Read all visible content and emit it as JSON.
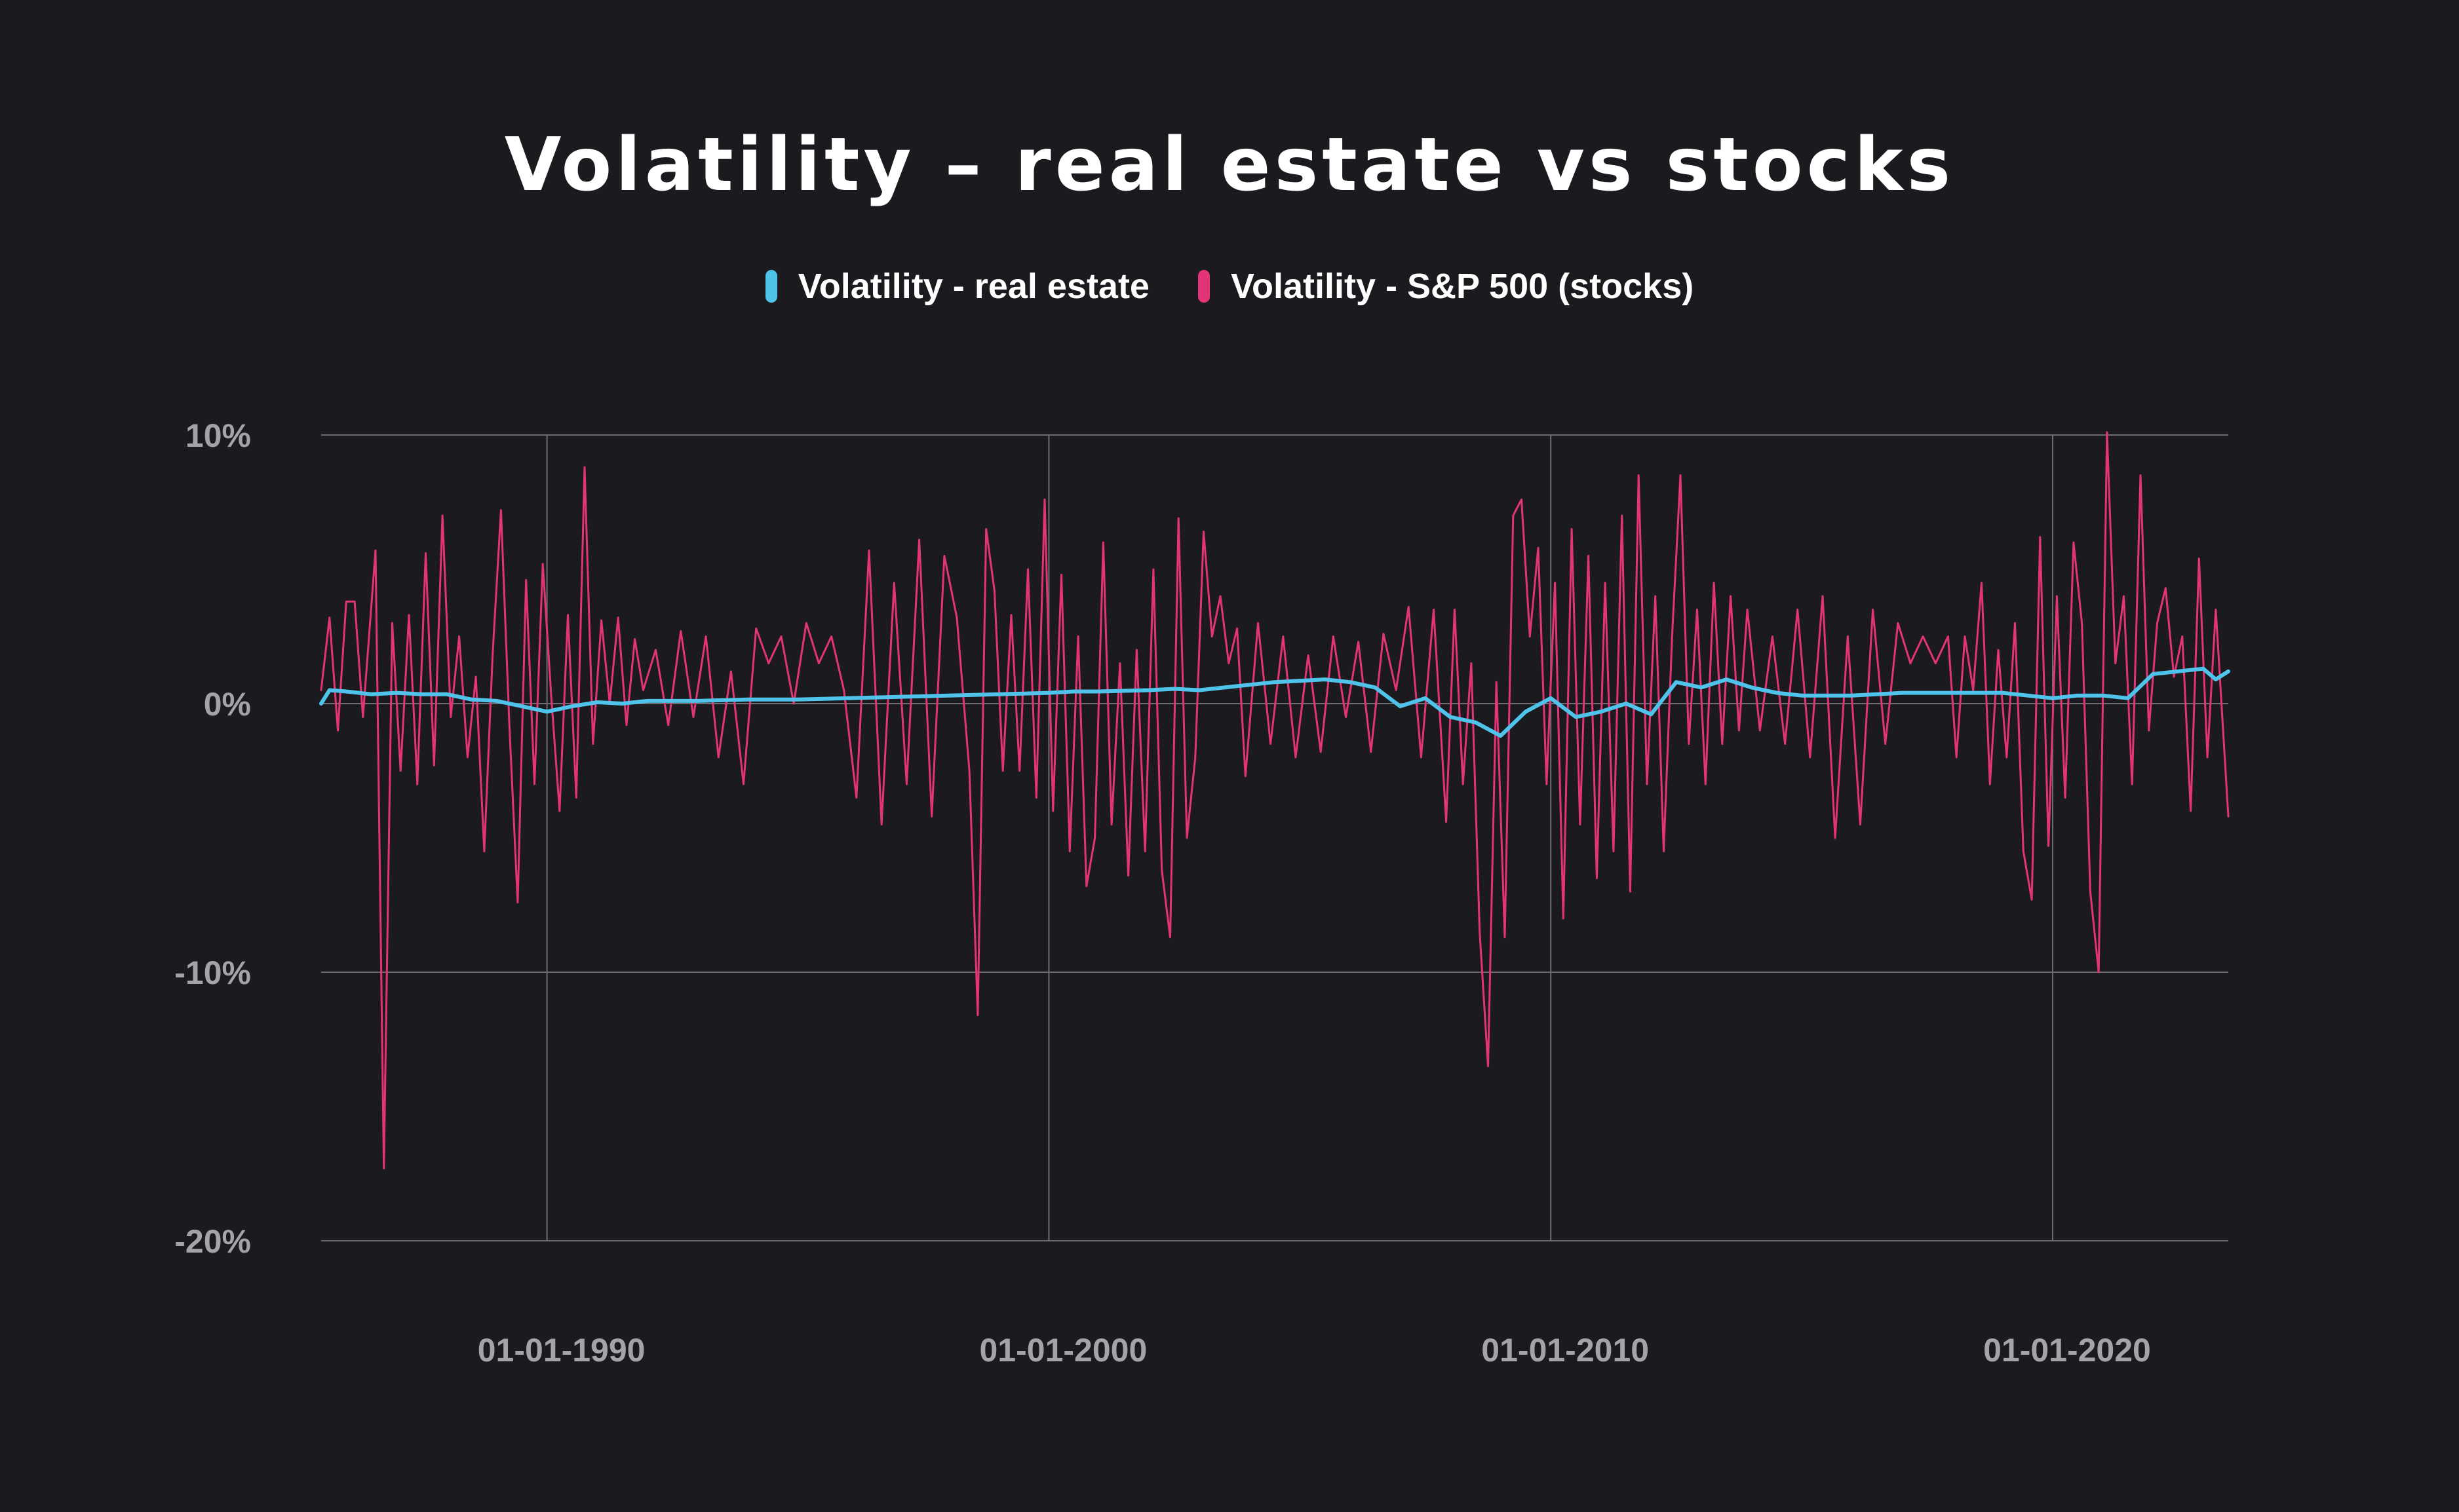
{
  "chart_data": {
    "type": "line",
    "title": "Volatility – real estate vs stocks",
    "xlabel": "",
    "ylabel": "",
    "x_range": [
      "1985-07-01",
      "2023-07-01"
    ],
    "xlim_years": [
      1985.5,
      2023.5
    ],
    "ylim": [
      -20,
      10
    ],
    "y_ticks": [
      10,
      0,
      -10,
      -20
    ],
    "y_tick_labels": [
      "10%",
      "0%",
      "-10%",
      "-20%"
    ],
    "x_ticks": [
      1990,
      2000,
      2010,
      2020
    ],
    "x_tick_labels": [
      "01-01-1990",
      "01-01-2000",
      "01-01-2010",
      "01-01-2020"
    ],
    "grid": true,
    "legend_position": "top-center",
    "colors": {
      "background": "#1b1b1f",
      "real_estate": "#4fc3ea",
      "stocks": "#e23476",
      "grid": "#6c6c72",
      "tick_text": "#a3a3aa"
    },
    "series": [
      {
        "name": "Volatility - real estate",
        "color": "#4fc3ea",
        "points": [
          [
            "1985-07",
            0.0
          ],
          [
            "1985-09",
            0.5
          ],
          [
            "1986-01",
            0.45
          ],
          [
            "1986-07",
            0.35
          ],
          [
            "1987-01",
            0.4
          ],
          [
            "1987-07",
            0.35
          ],
          [
            "1988-01",
            0.35
          ],
          [
            "1988-07",
            0.15
          ],
          [
            "1989-01",
            0.1
          ],
          [
            "1989-07",
            -0.1
          ],
          [
            "1990-01",
            -0.3
          ],
          [
            "1990-07",
            -0.1
          ],
          [
            "1991-01",
            0.05
          ],
          [
            "1991-07",
            0.0
          ],
          [
            "1992-01",
            0.1
          ],
          [
            "1993-01",
            0.1
          ],
          [
            "1994-01",
            0.15
          ],
          [
            "1995-01",
            0.15
          ],
          [
            "1996-01",
            0.2
          ],
          [
            "1997-01",
            0.25
          ],
          [
            "1998-01",
            0.3
          ],
          [
            "1999-01",
            0.35
          ],
          [
            "2000-01",
            0.4
          ],
          [
            "2000-07",
            0.45
          ],
          [
            "2001-01",
            0.45
          ],
          [
            "2002-01",
            0.5
          ],
          [
            "2002-07",
            0.55
          ],
          [
            "2003-01",
            0.5
          ],
          [
            "2003-07",
            0.6
          ],
          [
            "2004-01",
            0.7
          ],
          [
            "2004-07",
            0.8
          ],
          [
            "2005-01",
            0.85
          ],
          [
            "2005-07",
            0.9
          ],
          [
            "2006-01",
            0.8
          ],
          [
            "2006-07",
            0.6
          ],
          [
            "2007-01",
            -0.1
          ],
          [
            "2007-07",
            0.2
          ],
          [
            "2008-01",
            -0.5
          ],
          [
            "2008-07",
            -0.7
          ],
          [
            "2009-01",
            -1.2
          ],
          [
            "2009-07",
            -0.3
          ],
          [
            "2010-01",
            0.2
          ],
          [
            "2010-07",
            -0.5
          ],
          [
            "2011-01",
            -0.3
          ],
          [
            "2011-07",
            0.0
          ],
          [
            "2012-01",
            -0.4
          ],
          [
            "2012-07",
            0.8
          ],
          [
            "2013-01",
            0.6
          ],
          [
            "2013-07",
            0.9
          ],
          [
            "2014-01",
            0.6
          ],
          [
            "2014-07",
            0.4
          ],
          [
            "2015-01",
            0.3
          ],
          [
            "2016-01",
            0.3
          ],
          [
            "2017-01",
            0.4
          ],
          [
            "2018-01",
            0.4
          ],
          [
            "2019-01",
            0.4
          ],
          [
            "2019-07",
            0.3
          ],
          [
            "2020-01",
            0.2
          ],
          [
            "2020-07",
            0.3
          ],
          [
            "2021-01",
            0.3
          ],
          [
            "2021-07",
            0.2
          ],
          [
            "2022-01",
            1.1
          ],
          [
            "2022-07",
            1.2
          ],
          [
            "2023-01",
            1.3
          ],
          [
            "2023-04",
            0.9
          ],
          [
            "2023-07",
            1.2
          ]
        ]
      },
      {
        "name": "Volatility - S&P 500 (stocks)",
        "color": "#e23476",
        "points": [
          [
            "1985-07",
            0.5
          ],
          [
            "1985-09",
            3.2
          ],
          [
            "1985-11",
            -1.0
          ],
          [
            "1986-01",
            3.8
          ],
          [
            "1986-03",
            3.8
          ],
          [
            "1986-05",
            -0.5
          ],
          [
            "1986-08",
            5.7
          ],
          [
            "1986-10",
            -17.3
          ],
          [
            "1986-12",
            3.0
          ],
          [
            "1987-02",
            -2.5
          ],
          [
            "1987-04",
            3.3
          ],
          [
            "1987-06",
            -3.0
          ],
          [
            "1987-08",
            5.6
          ],
          [
            "1987-10",
            -2.3
          ],
          [
            "1987-12",
            7.0
          ],
          [
            "1988-02",
            -0.5
          ],
          [
            "1988-04",
            2.5
          ],
          [
            "1988-06",
            -2.0
          ],
          [
            "1988-08",
            1.0
          ],
          [
            "1988-10",
            -5.5
          ],
          [
            "1988-12",
            1.8
          ],
          [
            "1989-02",
            7.2
          ],
          [
            "1989-04",
            -0.8
          ],
          [
            "1989-06",
            -7.4
          ],
          [
            "1989-08",
            4.6
          ],
          [
            "1989-10",
            -3.0
          ],
          [
            "1989-12",
            5.2
          ],
          [
            "1990-02",
            0.3
          ],
          [
            "1990-04",
            -4.0
          ],
          [
            "1990-06",
            3.3
          ],
          [
            "1990-08",
            -3.5
          ],
          [
            "1990-10",
            8.8
          ],
          [
            "1990-12",
            -1.5
          ],
          [
            "1991-02",
            3.1
          ],
          [
            "1991-04",
            0.0
          ],
          [
            "1991-06",
            3.2
          ],
          [
            "1991-08",
            -0.8
          ],
          [
            "1991-10",
            2.4
          ],
          [
            "1991-12",
            0.5
          ],
          [
            "1992-03",
            2.0
          ],
          [
            "1992-06",
            -0.8
          ],
          [
            "1992-09",
            2.7
          ],
          [
            "1992-12",
            -0.5
          ],
          [
            "1993-03",
            2.5
          ],
          [
            "1993-06",
            -2.0
          ],
          [
            "1993-09",
            1.2
          ],
          [
            "1993-12",
            -3.0
          ],
          [
            "1994-03",
            2.8
          ],
          [
            "1994-06",
            1.5
          ],
          [
            "1994-09",
            2.5
          ],
          [
            "1994-12",
            0.0
          ],
          [
            "1995-03",
            3.0
          ],
          [
            "1995-06",
            1.5
          ],
          [
            "1995-09",
            2.5
          ],
          [
            "1995-12",
            0.5
          ],
          [
            "1996-03",
            -3.5
          ],
          [
            "1996-06",
            5.7
          ],
          [
            "1996-09",
            -4.5
          ],
          [
            "1996-12",
            4.5
          ],
          [
            "1997-03",
            -3.0
          ],
          [
            "1997-06",
            6.1
          ],
          [
            "1997-09",
            -4.2
          ],
          [
            "1997-12",
            5.5
          ],
          [
            "1998-03",
            3.2
          ],
          [
            "1998-06",
            -2.5
          ],
          [
            "1998-08",
            -11.6
          ],
          [
            "1998-10",
            6.5
          ],
          [
            "1998-12",
            4.2
          ],
          [
            "1999-02",
            -2.5
          ],
          [
            "1999-04",
            3.3
          ],
          [
            "1999-06",
            -2.5
          ],
          [
            "1999-08",
            5.0
          ],
          [
            "1999-10",
            -3.5
          ],
          [
            "1999-12",
            7.6
          ],
          [
            "2000-02",
            -4.0
          ],
          [
            "2000-04",
            4.8
          ],
          [
            "2000-06",
            -5.5
          ],
          [
            "2000-08",
            2.5
          ],
          [
            "2000-10",
            -6.8
          ],
          [
            "2000-12",
            -5.0
          ],
          [
            "2001-02",
            6.0
          ],
          [
            "2001-04",
            -4.5
          ],
          [
            "2001-06",
            1.5
          ],
          [
            "2001-08",
            -6.4
          ],
          [
            "2001-10",
            2.0
          ],
          [
            "2001-12",
            -5.5
          ],
          [
            "2002-02",
            5.0
          ],
          [
            "2002-04",
            -6.2
          ],
          [
            "2002-06",
            -8.7
          ],
          [
            "2002-08",
            6.9
          ],
          [
            "2002-10",
            -5.0
          ],
          [
            "2002-12",
            -2.0
          ],
          [
            "2003-02",
            6.4
          ],
          [
            "2003-04",
            2.5
          ],
          [
            "2003-06",
            4.0
          ],
          [
            "2003-08",
            1.5
          ],
          [
            "2003-10",
            2.8
          ],
          [
            "2003-12",
            -2.7
          ],
          [
            "2004-03",
            3.0
          ],
          [
            "2004-06",
            -1.5
          ],
          [
            "2004-09",
            2.5
          ],
          [
            "2004-12",
            -2.0
          ],
          [
            "2005-03",
            1.8
          ],
          [
            "2005-06",
            -1.8
          ],
          [
            "2005-09",
            2.5
          ],
          [
            "2005-12",
            -0.5
          ],
          [
            "2006-03",
            2.3
          ],
          [
            "2006-06",
            -1.8
          ],
          [
            "2006-09",
            2.6
          ],
          [
            "2006-12",
            0.5
          ],
          [
            "2007-03",
            3.6
          ],
          [
            "2007-06",
            -2.0
          ],
          [
            "2007-09",
            3.5
          ],
          [
            "2007-12",
            -4.4
          ],
          [
            "2008-02",
            3.5
          ],
          [
            "2008-04",
            -3.0
          ],
          [
            "2008-06",
            1.5
          ],
          [
            "2008-08",
            -8.5
          ],
          [
            "2008-10",
            -13.5
          ],
          [
            "2008-12",
            0.8
          ],
          [
            "2009-02",
            -8.7
          ],
          [
            "2009-04",
            7.0
          ],
          [
            "2009-06",
            7.6
          ],
          [
            "2009-08",
            2.5
          ],
          [
            "2009-10",
            5.8
          ],
          [
            "2009-12",
            -3.0
          ],
          [
            "2010-02",
            4.5
          ],
          [
            "2010-04",
            -8.0
          ],
          [
            "2010-06",
            6.5
          ],
          [
            "2010-08",
            -4.5
          ],
          [
            "2010-10",
            5.5
          ],
          [
            "2010-12",
            -6.5
          ],
          [
            "2011-02",
            4.5
          ],
          [
            "2011-04",
            -5.5
          ],
          [
            "2011-06",
            7.0
          ],
          [
            "2011-08",
            -7.0
          ],
          [
            "2011-10",
            8.5
          ],
          [
            "2011-12",
            -3.0
          ],
          [
            "2012-02",
            4.0
          ],
          [
            "2012-04",
            -5.5
          ],
          [
            "2012-06",
            2.5
          ],
          [
            "2012-08",
            8.5
          ],
          [
            "2012-10",
            -1.5
          ],
          [
            "2012-12",
            3.5
          ],
          [
            "2013-02",
            -3.0
          ],
          [
            "2013-04",
            4.5
          ],
          [
            "2013-06",
            -1.5
          ],
          [
            "2013-08",
            4.0
          ],
          [
            "2013-10",
            -1.0
          ],
          [
            "2013-12",
            3.5
          ],
          [
            "2014-03",
            -1.0
          ],
          [
            "2014-06",
            2.5
          ],
          [
            "2014-09",
            -1.5
          ],
          [
            "2014-12",
            3.5
          ],
          [
            "2015-03",
            -2.0
          ],
          [
            "2015-06",
            4.0
          ],
          [
            "2015-09",
            -5.0
          ],
          [
            "2015-12",
            2.5
          ],
          [
            "2016-03",
            -4.5
          ],
          [
            "2016-06",
            3.5
          ],
          [
            "2016-09",
            -1.5
          ],
          [
            "2016-12",
            3.0
          ],
          [
            "2017-03",
            1.5
          ],
          [
            "2017-06",
            2.5
          ],
          [
            "2017-09",
            1.5
          ],
          [
            "2017-12",
            2.5
          ],
          [
            "2018-02",
            -2.0
          ],
          [
            "2018-04",
            2.5
          ],
          [
            "2018-06",
            0.5
          ],
          [
            "2018-08",
            4.5
          ],
          [
            "2018-10",
            -3.0
          ],
          [
            "2018-12",
            2.0
          ],
          [
            "2019-02",
            -2.0
          ],
          [
            "2019-04",
            3.0
          ],
          [
            "2019-06",
            -5.5
          ],
          [
            "2019-08",
            -7.3
          ],
          [
            "2019-10",
            6.2
          ],
          [
            "2019-12",
            -5.3
          ],
          [
            "2020-02",
            4.0
          ],
          [
            "2020-04",
            -3.5
          ],
          [
            "2020-06",
            6.0
          ],
          [
            "2020-08",
            3.0
          ],
          [
            "2020-10",
            -7.0
          ],
          [
            "2020-12",
            -10.0
          ],
          [
            "2021-02",
            10.1
          ],
          [
            "2021-04",
            1.5
          ],
          [
            "2021-06",
            4.0
          ],
          [
            "2021-08",
            -3.0
          ],
          [
            "2021-10",
            8.5
          ],
          [
            "2021-12",
            -1.0
          ],
          [
            "2022-02",
            3.0
          ],
          [
            "2022-04",
            4.3
          ],
          [
            "2022-06",
            1.0
          ],
          [
            "2022-08",
            2.5
          ],
          [
            "2022-10",
            -4.0
          ],
          [
            "2022-12",
            5.4
          ],
          [
            "2023-02",
            -2.0
          ],
          [
            "2023-04",
            3.5
          ],
          [
            "2023-07",
            -4.2
          ]
        ]
      }
    ]
  }
}
